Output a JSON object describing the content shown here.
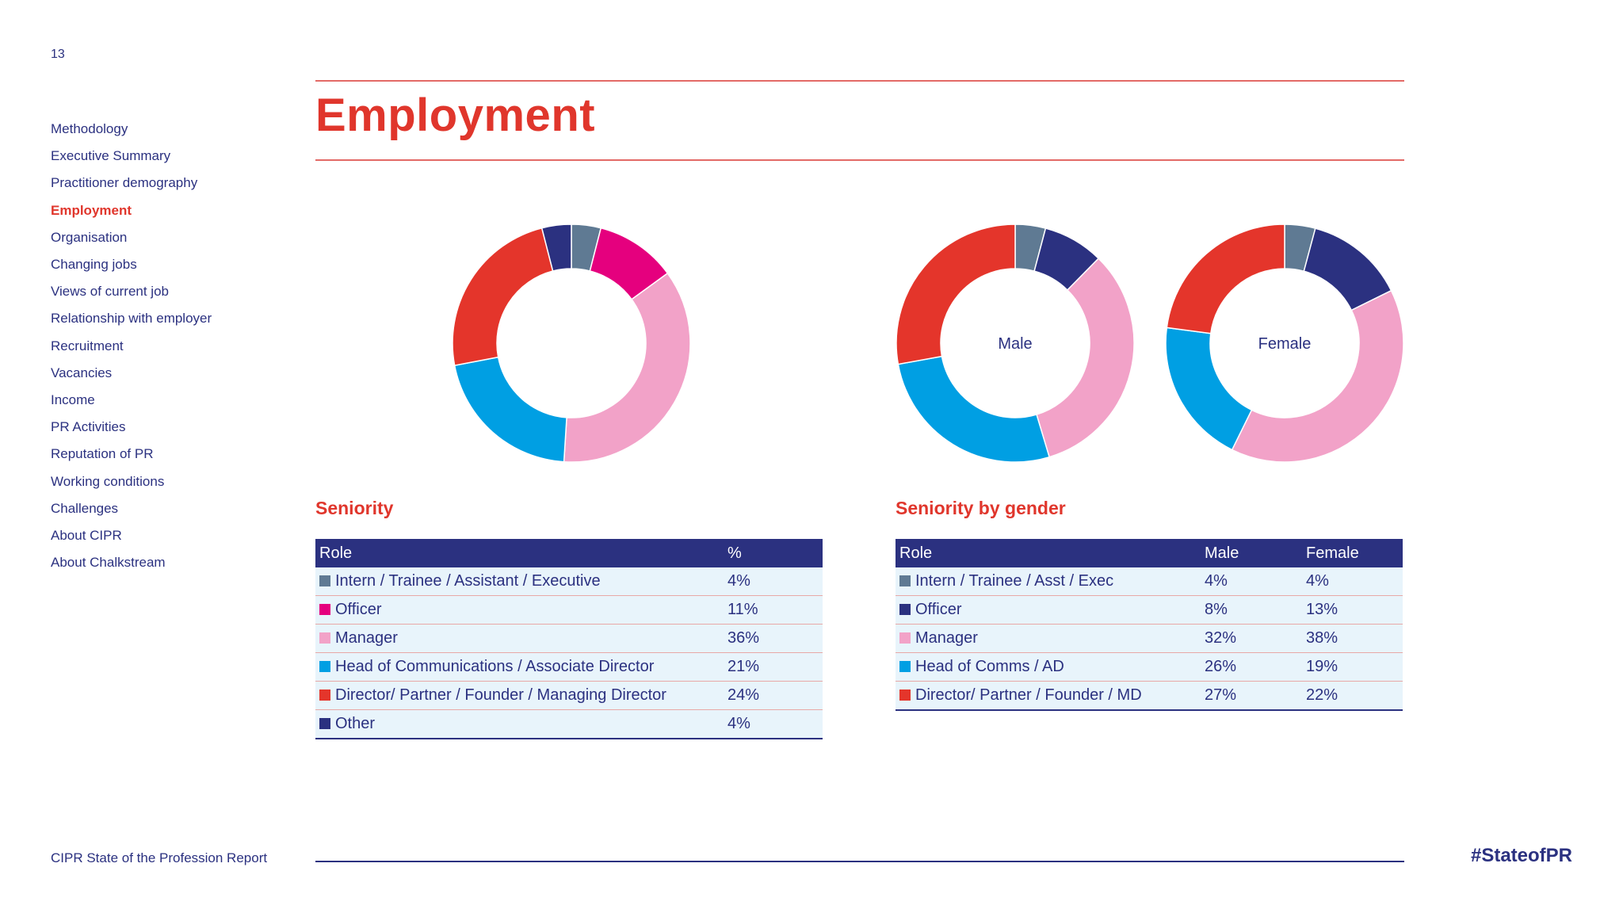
{
  "page_number": "13",
  "nav": {
    "items": [
      {
        "label": "Methodology",
        "active": false
      },
      {
        "label": "Executive Summary",
        "active": false
      },
      {
        "label": "Practitioner demography",
        "active": false
      },
      {
        "label": "Employment",
        "active": true
      },
      {
        "label": "Organisation",
        "active": false
      },
      {
        "label": "Changing jobs",
        "active": false
      },
      {
        "label": "Views of current job",
        "active": false
      },
      {
        "label": "Relationship with employer",
        "active": false
      },
      {
        "label": "Recruitment",
        "active": false
      },
      {
        "label": "Vacancies",
        "active": false
      },
      {
        "label": "Income",
        "active": false
      },
      {
        "label": "PR Activities",
        "active": false
      },
      {
        "label": "Reputation of PR",
        "active": false
      },
      {
        "label": "Working conditions",
        "active": false
      },
      {
        "label": "Challenges",
        "active": false
      },
      {
        "label": "About CIPR",
        "active": false
      },
      {
        "label": "About Chalkstream",
        "active": false
      }
    ]
  },
  "title": "Employment",
  "colors": {
    "intern": "#5f7a93",
    "officer": "#e5007e",
    "officer_gender": "#2b3180",
    "manager": "#f2a2c8",
    "head": "#009fe3",
    "director": "#e4352b",
    "other": "#2b3180",
    "accent": "#e0362c",
    "navy": "#2b3180"
  },
  "chart_data": [
    {
      "type": "pie",
      "title": "Seniority",
      "categories": [
        "Intern / Trainee / Assistant / Executive",
        "Officer",
        "Manager",
        "Head of Communications / Associate Director",
        "Director/ Partner / Founder / Managing Director",
        "Other"
      ],
      "values": [
        4,
        11,
        36,
        21,
        24,
        4
      ],
      "colors": [
        "#5f7a93",
        "#e5007e",
        "#f2a2c8",
        "#009fe3",
        "#e4352b",
        "#2b3180"
      ],
      "table": {
        "headers": [
          "Role",
          "%"
        ],
        "rows": [
          {
            "role": "Intern / Trainee / Assistant / Executive",
            "pct": "4%",
            "color": "#5f7a93"
          },
          {
            "role": "Officer",
            "pct": "11%",
            "color": "#e5007e"
          },
          {
            "role": "Manager",
            "pct": "36%",
            "color": "#f2a2c8"
          },
          {
            "role": "Head of Communications / Associate Director",
            "pct": "21%",
            "color": "#009fe3"
          },
          {
            "role": "Director/ Partner / Founder / Managing Director",
            "pct": "24%",
            "color": "#e4352b"
          },
          {
            "role": "Other",
            "pct": "4%",
            "color": "#2b3180"
          }
        ]
      }
    },
    {
      "type": "pie",
      "title": "Seniority by gender",
      "categories": [
        "Intern / Trainee / Asst / Exec",
        "Officer",
        "Manager",
        "Head of Comms / AD",
        "Director/ Partner / Founder / MD"
      ],
      "series": [
        {
          "name": "Male",
          "values": [
            4,
            8,
            32,
            26,
            27
          ]
        },
        {
          "name": "Female",
          "values": [
            4,
            13,
            38,
            19,
            22
          ]
        }
      ],
      "colors": [
        "#5f7a93",
        "#2b3180",
        "#f2a2c8",
        "#009fe3",
        "#e4352b"
      ],
      "table": {
        "headers": [
          "Role",
          "Male",
          "Female"
        ],
        "rows": [
          {
            "role": "Intern / Trainee / Asst / Exec",
            "male": "4%",
            "female": "4%",
            "color": "#5f7a93"
          },
          {
            "role": "Officer",
            "male": "8%",
            "female": "13%",
            "color": "#2b3180"
          },
          {
            "role": "Manager",
            "male": "32%",
            "female": "38%",
            "color": "#f2a2c8"
          },
          {
            "role": "Head of Comms / AD",
            "male": "26%",
            "female": "19%",
            "color": "#009fe3"
          },
          {
            "role": "Director/ Partner / Founder / MD",
            "male": "27%",
            "female": "22%",
            "color": "#e4352b"
          }
        ]
      }
    }
  ],
  "footer": {
    "report_name": "CIPR State of the Profession Report",
    "hashtag": "#StateofPR"
  }
}
